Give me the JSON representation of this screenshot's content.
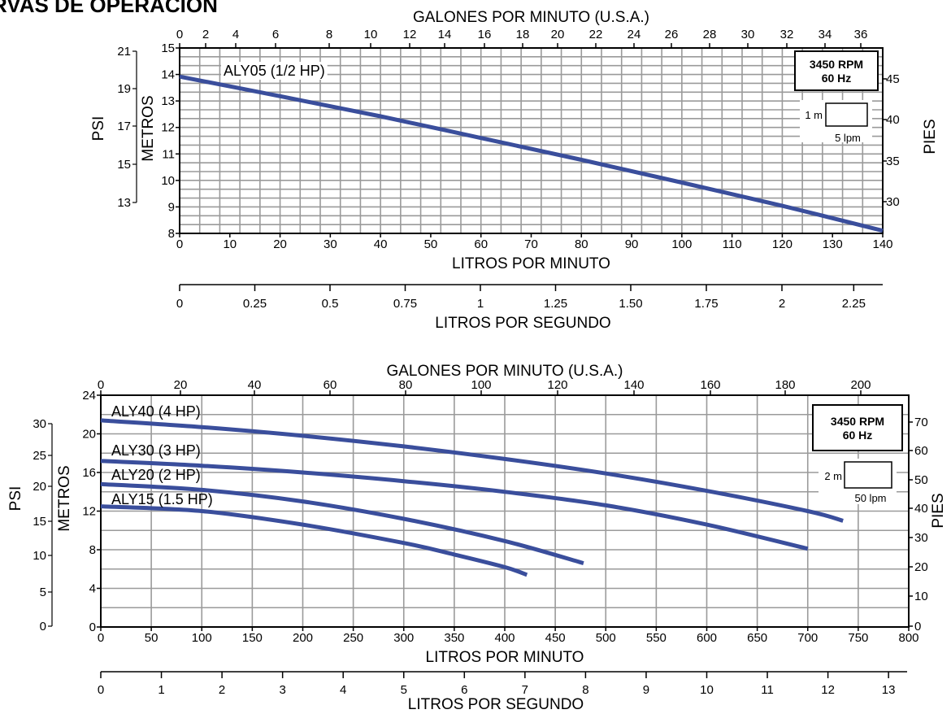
{
  "page_title": "RVAS DE OPERACION",
  "chart_data": [
    {
      "type": "line",
      "top_axis": {
        "label": "GALONES POR MINUTO (U.S.A.)",
        "ticks": [
          0,
          2,
          4,
          6,
          8,
          10,
          12,
          14,
          16,
          18,
          20,
          22,
          24,
          26,
          28,
          30,
          32,
          34,
          36
        ]
      },
      "x_axis": {
        "label": "LITROS POR MINUTO",
        "range": [
          0,
          140
        ],
        "ticks": [
          0,
          10,
          20,
          30,
          40,
          50,
          60,
          70,
          80,
          90,
          100,
          110,
          120,
          130,
          140
        ]
      },
      "x2_axis": {
        "label": "LITROS POR SEGUNDO",
        "tick_labels": [
          "0",
          "0.25",
          "0.5",
          "0.75",
          "1",
          "1.25",
          "1.50",
          "1.75",
          "2",
          "2.25"
        ],
        "tick_values": [
          0,
          0.25,
          0.5,
          0.75,
          1,
          1.25,
          1.5,
          1.75,
          2,
          2.25
        ]
      },
      "y_axis": {
        "label": "METROS",
        "range": [
          8,
          15
        ],
        "ticks": [
          8,
          9,
          10,
          11,
          12,
          13,
          14,
          15
        ]
      },
      "y_psi_axis": {
        "label": "PSI",
        "ticks": [
          13,
          15,
          17,
          19,
          21
        ]
      },
      "y_right_axis": {
        "label": "PIES",
        "ticks": [
          30,
          35,
          40,
          45
        ]
      },
      "grid": true,
      "rpm_box": {
        "line1": "3450 RPM",
        "line2": "60 Hz"
      },
      "scale_box": {
        "height_label": "1 m",
        "width_label": "5 lpm"
      },
      "color": "#3a4e9c",
      "series": [
        {
          "name": "ALY05 (1/2 HP)",
          "x": [
            0,
            20,
            40,
            60,
            80,
            100,
            120,
            140
          ],
          "y": [
            13.92,
            13.18,
            12.42,
            11.6,
            10.78,
            9.92,
            9.04,
            8.1
          ]
        }
      ]
    },
    {
      "type": "line",
      "top_axis": {
        "label": "GALONES POR MINUTO (U.S.A.)",
        "ticks": [
          0,
          20,
          40,
          60,
          80,
          100,
          120,
          140,
          160,
          180,
          200
        ]
      },
      "x_axis": {
        "label": "LITROS POR MINUTO",
        "range": [
          0,
          800
        ],
        "ticks": [
          0,
          50,
          100,
          150,
          200,
          250,
          300,
          350,
          400,
          450,
          500,
          550,
          600,
          650,
          700,
          750,
          800
        ]
      },
      "x2_axis": {
        "label": "LITROS POR SEGUNDO",
        "tick_labels": [
          "0",
          "1",
          "2",
          "3",
          "4",
          "5",
          "6",
          "7",
          "8",
          "9",
          "10",
          "11",
          "12",
          "13"
        ],
        "tick_values": [
          0,
          1,
          2,
          3,
          4,
          5,
          6,
          7,
          8,
          9,
          10,
          11,
          12,
          13
        ]
      },
      "y_axis": {
        "label": "METROS",
        "range": [
          0,
          24
        ],
        "ticks": [
          0,
          4,
          8,
          12,
          16,
          20,
          24
        ]
      },
      "y_psi_axis": {
        "label": "PSI",
        "ticks": [
          0,
          5,
          10,
          15,
          20,
          25,
          30
        ]
      },
      "y_right_axis": {
        "label": "PIES",
        "ticks": [
          0,
          10,
          20,
          30,
          40,
          50,
          60,
          70
        ]
      },
      "grid": true,
      "rpm_box": {
        "line1": "3450 RPM",
        "line2": "60 Hz"
      },
      "scale_box": {
        "height_label": "2 m",
        "width_label": "50 lpm"
      },
      "color": "#3a4e9c",
      "series": [
        {
          "name": "ALY40 (4 HP)",
          "x": [
            0,
            100,
            200,
            300,
            400,
            500,
            600,
            700,
            735
          ],
          "y": [
            21.4,
            20.7,
            19.8,
            18.7,
            17.4,
            15.9,
            14.1,
            12.0,
            11.0
          ]
        },
        {
          "name": "ALY30 (3 HP)",
          "x": [
            0,
            100,
            200,
            300,
            400,
            500,
            600,
            700
          ],
          "y": [
            17.2,
            16.7,
            16.0,
            15.1,
            14.0,
            12.6,
            10.6,
            8.1
          ]
        },
        {
          "name": "ALY20 (2 HP)",
          "x": [
            0,
            100,
            200,
            300,
            400,
            478
          ],
          "y": [
            14.8,
            14.2,
            13.0,
            11.2,
            8.9,
            6.6
          ]
        },
        {
          "name": "ALY15 (1.5 HP)",
          "x": [
            0,
            100,
            200,
            300,
            350,
            400,
            422
          ],
          "y": [
            12.5,
            12.0,
            10.6,
            8.7,
            7.5,
            6.2,
            5.4
          ]
        }
      ]
    }
  ]
}
